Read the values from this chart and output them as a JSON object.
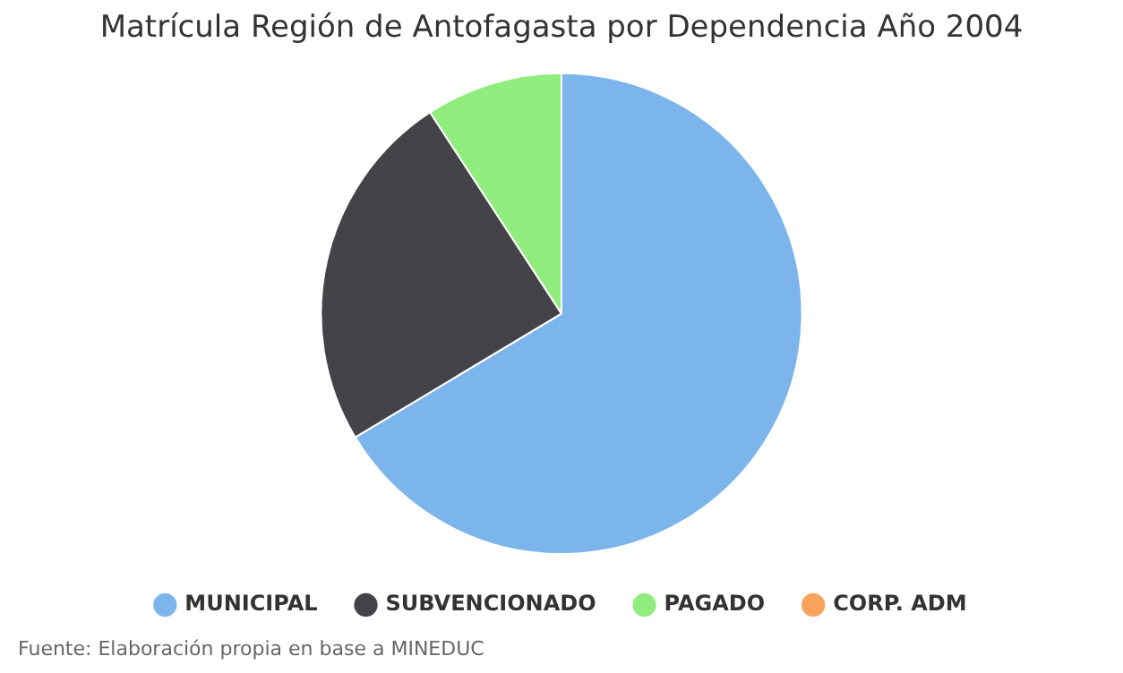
{
  "chart_data": {
    "type": "pie",
    "title": "Matrícula Región de Antofagasta por Dependencia Año 2004",
    "categories": [
      "MUNICIPAL",
      "SUBVENCIONADO",
      "PAGADO",
      "CORP. ADM"
    ],
    "values": [
      66.4,
      24.4,
      9.2,
      0
    ],
    "colors": [
      "#7cb5ec",
      "#434348",
      "#90ed7d",
      "#f7a35c"
    ],
    "legend": "bottom",
    "annotations": [
      "Fuente: Elaboración propia en base a MINEDUC"
    ]
  }
}
